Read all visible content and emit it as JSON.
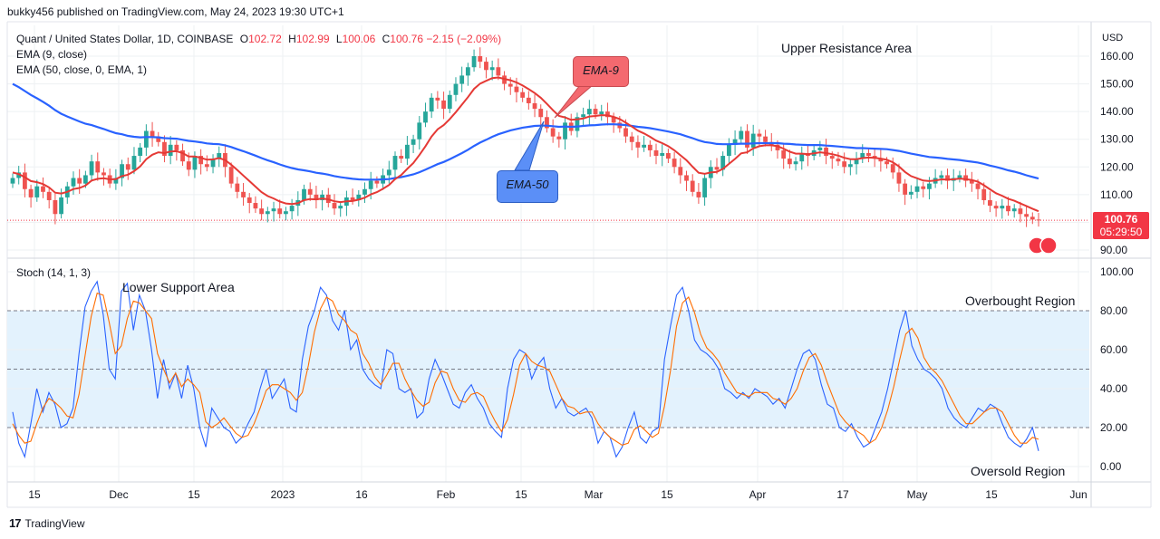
{
  "header": {
    "publisher": "bukky456 published on TradingView.com, May 24, 2023 19:30 UTC+1"
  },
  "legend": {
    "symbol": "Quant / United States Dollar, 1D, COINBASE",
    "o_key": "O",
    "o": "102.72",
    "h_key": "H",
    "h": "102.99",
    "l_key": "L",
    "l": "100.06",
    "c_key": "C",
    "c": "100.76",
    "change": "−2.15 (−2.09%)",
    "ema9": "EMA (9, close)",
    "ema50": "EMA (50, close, 0, EMA, 1)",
    "stoch": "Stoch (14, 1, 3)"
  },
  "annotations": {
    "upper_resistance": "Upper Resistance Area",
    "lower_support": "Lower Support Area",
    "overbought": "Overbought Region",
    "oversold": "Oversold Region",
    "ema9_callout": "EMA-9",
    "ema50_callout": "EMA-50"
  },
  "price_tag": {
    "price": "100.76",
    "countdown": "05:29:50"
  },
  "footer": {
    "logo": "17",
    "brand": "TradingView"
  },
  "colors": {
    "up": "#26a69a",
    "down": "#ef5350",
    "ema9": "#e53935",
    "ema50": "#2962ff",
    "stoch_k": "#2962ff",
    "stoch_d": "#ff6d00",
    "band": "#e3f2fd",
    "callout_ema9": "#f4696f",
    "callout_ema50": "#5b8ff7"
  },
  "chart_data": [
    {
      "type": "candlestick",
      "title": "Quant / United States Dollar, 1D, COINBASE",
      "y_axis_label": "USD",
      "y_ticks": [
        "160.00",
        "150.00",
        "140.00",
        "130.00",
        "120.00",
        "110.00",
        "100.00",
        "90.00"
      ],
      "y_tick_values": [
        160,
        150,
        140,
        130,
        120,
        110,
        100,
        90
      ],
      "x_ticks": [
        "15",
        "Dec",
        "15",
        "2023",
        "16",
        "Feb",
        "15",
        "Mar",
        "15",
        "Apr",
        "17",
        "May",
        "15",
        "Jun"
      ],
      "ylim": [
        86,
        169
      ],
      "last_price": 100.76,
      "close": [
        116,
        118,
        112,
        109,
        113,
        111,
        108,
        103,
        109,
        113,
        116,
        114,
        117,
        122,
        118,
        117,
        114,
        116,
        121,
        119,
        124,
        127,
        133,
        131,
        129,
        124,
        128,
        126,
        122,
        119,
        124,
        121,
        120,
        123,
        125,
        120,
        114,
        111,
        109,
        107,
        105,
        103,
        104,
        105,
        103,
        104,
        106,
        108,
        112,
        110,
        108,
        110,
        107,
        105,
        106,
        109,
        108,
        110,
        112,
        115,
        114,
        117,
        119,
        124,
        123,
        128,
        130,
        136,
        140,
        145,
        144,
        141,
        146,
        150,
        153,
        156,
        160,
        158,
        155,
        156,
        153,
        150,
        149,
        147,
        145,
        143,
        141,
        138,
        134,
        131,
        130,
        136,
        133,
        138,
        139,
        141,
        139,
        140,
        138,
        136,
        134,
        131,
        129,
        127,
        128,
        126,
        124,
        125,
        123,
        120,
        117,
        115,
        111,
        109,
        116,
        120,
        119,
        124,
        128,
        130,
        133,
        127,
        132,
        131,
        129,
        128,
        126,
        123,
        121,
        122,
        125,
        124,
        126,
        127,
        124,
        123,
        122,
        120,
        121,
        123,
        125,
        124,
        123,
        122,
        121,
        118,
        114,
        110,
        111,
        113,
        112,
        114,
        116,
        117,
        115,
        116,
        117,
        115,
        114,
        112,
        108,
        106,
        105,
        106,
        104,
        105,
        103,
        102,
        101,
        100.76
      ],
      "ema9": [
        118,
        117.4,
        116.3,
        114.9,
        114.5,
        113.8,
        112.6,
        110.7,
        110.4,
        111.0,
        112.0,
        112.4,
        113.3,
        115.1,
        115.7,
        115.9,
        115.5,
        115.6,
        116.7,
        117.2,
        118.5,
        120.2,
        122.8,
        124.4,
        125.3,
        125.0,
        125.6,
        125.7,
        125.0,
        123.8,
        123.8,
        123.3,
        122.6,
        122.7,
        123.2,
        122.5,
        120.8,
        118.9,
        116.9,
        114.9,
        112.9,
        110.9,
        109.5,
        108.6,
        107.5,
        106.8,
        106.6,
        106.9,
        108.0,
        108.4,
        108.3,
        108.6,
        108.3,
        107.6,
        107.3,
        107.6,
        107.7,
        108.2,
        108.9,
        110.1,
        110.9,
        112.1,
        113.5,
        115.6,
        117.1,
        119.3,
        121.4,
        124.3,
        127.5,
        131.0,
        133.6,
        135.1,
        137.3,
        139.8,
        142.5,
        145.2,
        148.2,
        150.1,
        151.1,
        152.1,
        152.3,
        151.8,
        151.3,
        150.5,
        149.4,
        148.1,
        146.7,
        145.0,
        142.8,
        140.5,
        138.4,
        137.9,
        137.0,
        137.2,
        137.5,
        138.2,
        138.4,
        138.7,
        138.6,
        138.1,
        137.3,
        136.0,
        134.6,
        133.1,
        132.1,
        130.9,
        129.5,
        128.6,
        127.5,
        126.0,
        124.2,
        122.4,
        120.1,
        117.9,
        117.5,
        118.0,
        118.2,
        119.3,
        121.1,
        122.9,
        124.9,
        125.3,
        126.7,
        127.5,
        127.8,
        127.8,
        127.5,
        126.6,
        125.5,
        124.8,
        124.8,
        124.6,
        124.9,
        125.3,
        125.0,
        124.6,
        124.1,
        123.3,
        122.8,
        122.8,
        123.2,
        123.4,
        123.3,
        123.0,
        122.6,
        121.7,
        120.2,
        118.2,
        116.7,
        115.9,
        115.1,
        114.9,
        115.1,
        115.5,
        115.4,
        115.5,
        115.8,
        115.6,
        115.3,
        114.7,
        113.4,
        111.9,
        110.5,
        109.6,
        108.5,
        107.8,
        106.8,
        105.9,
        104.9,
        104.0
      ],
      "ema50": [
        150,
        148.8,
        147.4,
        146.0,
        144.8,
        143.5,
        142.1,
        140.5,
        139.2,
        138.2,
        137.3,
        136.4,
        135.6,
        135.1,
        134.4,
        133.7,
        132.9,
        132.2,
        131.8,
        131.2,
        130.9,
        130.7,
        130.8,
        130.8,
        130.7,
        130.4,
        130.3,
        130.2,
        129.8,
        129.4,
        129.2,
        128.9,
        128.5,
        128.3,
        128.2,
        127.8,
        127.2,
        126.4,
        125.7,
        124.9,
        124.1,
        123.2,
        122.4,
        121.7,
        120.9,
        120.2,
        119.6,
        119.1,
        118.8,
        118.4,
        117.9,
        117.6,
        117.2,
        116.7,
        116.3,
        116.0,
        115.7,
        115.5,
        115.4,
        115.4,
        115.4,
        115.5,
        115.6,
        116.0,
        116.3,
        116.8,
        117.3,
        118.1,
        119.0,
        120.0,
        121.0,
        121.8,
        122.8,
        123.9,
        125.0,
        126.2,
        127.6,
        128.8,
        129.8,
        130.9,
        131.8,
        132.5,
        133.2,
        133.7,
        134.2,
        134.5,
        134.8,
        134.9,
        134.9,
        134.7,
        134.5,
        134.6,
        134.5,
        134.6,
        134.8,
        135.0,
        135.1,
        135.3,
        135.4,
        135.4,
        135.3,
        135.1,
        134.8,
        134.5,
        134.3,
        134.0,
        133.6,
        133.2,
        132.8,
        132.3,
        131.8,
        131.1,
        130.4,
        129.6,
        129.0,
        128.7,
        128.3,
        128.2,
        128.2,
        128.3,
        128.4,
        128.4,
        128.5,
        128.6,
        128.6,
        128.6,
        128.6,
        128.4,
        128.3,
        128.1,
        128.0,
        127.9,
        127.9,
        127.9,
        127.7,
        127.6,
        127.4,
        127.2,
        127.0,
        126.8,
        126.8,
        126.7,
        126.6,
        126.5,
        126.4,
        126.1,
        125.8,
        125.3,
        124.8,
        124.4,
        124.0,
        123.6,
        123.4,
        123.2,
        122.9,
        122.7,
        122.5,
        122.2,
        121.9,
        121.6,
        121.1,
        120.5,
        120.0,
        119.4,
        118.8,
        118.3,
        117.7,
        117.0,
        116.4,
        115.8
      ]
    },
    {
      "type": "line",
      "title": "Stoch (14, 1, 3)",
      "y_ticks": [
        "100.00",
        "80.00",
        "60.00",
        "40.00",
        "20.00",
        "0.00"
      ],
      "y_tick_values": [
        100,
        80,
        60,
        40,
        20,
        0
      ],
      "ylim": [
        -6,
        106
      ],
      "levels": [
        80,
        50,
        20
      ],
      "band": [
        20,
        80
      ],
      "series": [
        {
          "name": "%K",
          "values": [
            28,
            12,
            5,
            22,
            40,
            28,
            38,
            32,
            20,
            22,
            30,
            58,
            82,
            90,
            95,
            78,
            50,
            45,
            90,
            94,
            70,
            88,
            80,
            60,
            35,
            55,
            40,
            48,
            35,
            52,
            40,
            20,
            10,
            30,
            25,
            20,
            18,
            12,
            15,
            22,
            28,
            40,
            50,
            35,
            40,
            45,
            30,
            28,
            55,
            72,
            80,
            92,
            88,
            75,
            70,
            80,
            60,
            65,
            50,
            45,
            42,
            40,
            60,
            58,
            40,
            38,
            40,
            25,
            28,
            45,
            55,
            48,
            40,
            32,
            30,
            38,
            42,
            35,
            30,
            22,
            18,
            15,
            40,
            55,
            60,
            58,
            45,
            52,
            56,
            40,
            30,
            35,
            28,
            26,
            28,
            30,
            25,
            12,
            18,
            15,
            5,
            10,
            20,
            28,
            15,
            12,
            18,
            20,
            55,
            72,
            88,
            92,
            80,
            65,
            60,
            58,
            55,
            50,
            40,
            38,
            35,
            38,
            35,
            40,
            38,
            36,
            32,
            35,
            30,
            40,
            50,
            58,
            60,
            55,
            42,
            32,
            30,
            20,
            18,
            22,
            15,
            10,
            12,
            20,
            28,
            40,
            55,
            70,
            80,
            62,
            55,
            50,
            48,
            45,
            40,
            30,
            25,
            22,
            20,
            25,
            30,
            28,
            32,
            30,
            22,
            15,
            12,
            10,
            14,
            20,
            8
          ]
        },
        {
          "name": "%D",
          "values": [
            22,
            16,
            12,
            13,
            22,
            30,
            35,
            33,
            30,
            26,
            25,
            37,
            57,
            77,
            89,
            88,
            74,
            58,
            62,
            76,
            85,
            84,
            80,
            76,
            58,
            50,
            43,
            48,
            41,
            45,
            42,
            38,
            23,
            20,
            22,
            25,
            21,
            17,
            15,
            16,
            22,
            30,
            39,
            42,
            42,
            40,
            38,
            34,
            38,
            52,
            69,
            81,
            87,
            85,
            78,
            75,
            70,
            68,
            58,
            53,
            46,
            42,
            47,
            53,
            53,
            45,
            39,
            34,
            31,
            33,
            43,
            49,
            48,
            40,
            34,
            33,
            37,
            38,
            36,
            29,
            23,
            18,
            24,
            37,
            52,
            58,
            54,
            52,
            51,
            49,
            42,
            35,
            31,
            30,
            27,
            28,
            28,
            22,
            18,
            15,
            13,
            11,
            12,
            19,
            21,
            18,
            15,
            17,
            31,
            49,
            72,
            84,
            87,
            79,
            68,
            61,
            58,
            54,
            48,
            43,
            38,
            37,
            36,
            38,
            38,
            38,
            35,
            34,
            32,
            35,
            40,
            49,
            56,
            58,
            52,
            43,
            35,
            27,
            23,
            20,
            18,
            16,
            12,
            14,
            20,
            29,
            41,
            55,
            68,
            71,
            66,
            56,
            51,
            48,
            44,
            38,
            32,
            26,
            22,
            22,
            25,
            28,
            30,
            30,
            28,
            22,
            16,
            12,
            12,
            15,
            14
          ]
        }
      ]
    }
  ]
}
